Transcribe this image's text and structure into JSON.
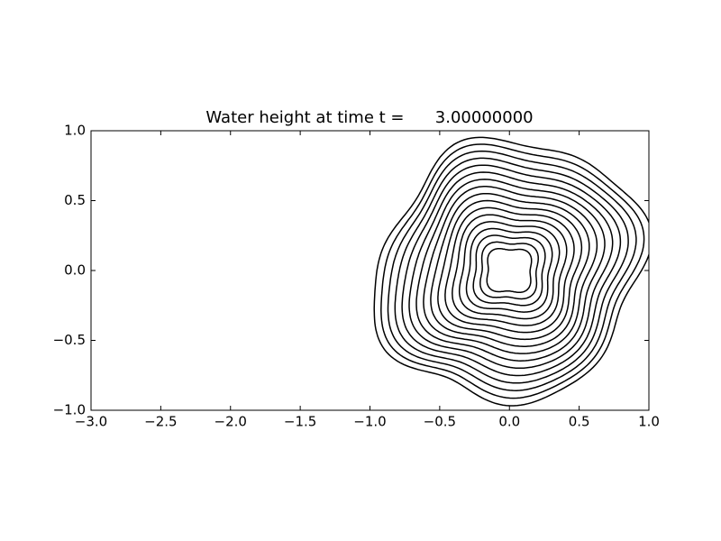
{
  "chart_data": {
    "type": "contour",
    "title": "Water height at time t =      3.00000000",
    "xlim": [
      -3,
      1
    ],
    "xticks": [
      {
        "value": -3,
        "label": "−3.0"
      },
      {
        "value": -2.5,
        "label": "−2.5"
      },
      {
        "value": -2,
        "label": "−2.0"
      },
      {
        "value": -1.5,
        "label": "−1.5"
      },
      {
        "value": -1,
        "label": "−1.0"
      },
      {
        "value": -0.5,
        "label": "−0.5"
      },
      {
        "value": 0,
        "label": "0.0"
      },
      {
        "value": 0.5,
        "label": "0.5"
      },
      {
        "value": 1,
        "label": "1.0"
      }
    ],
    "ylim": [
      -1,
      1
    ],
    "yticks": [
      {
        "value": -1,
        "label": "−1.0"
      },
      {
        "value": -0.5,
        "label": "−0.5"
      },
      {
        "value": 0,
        "label": "0.0"
      },
      0.5,
      {
        "value": 1,
        "label": "1.0"
      }
    ],
    "line_color": "#000000"
  }
}
